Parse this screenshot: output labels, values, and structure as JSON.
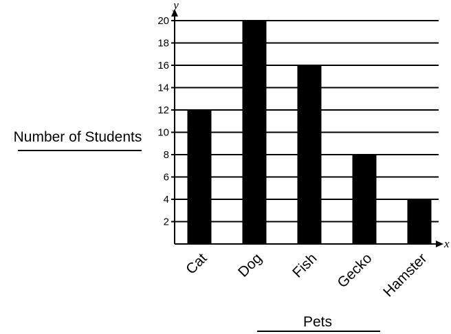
{
  "chart_data": {
    "type": "bar",
    "categories": [
      "Cat",
      "Dog",
      "Fish",
      "Gecko",
      "Hamster"
    ],
    "values": [
      12,
      20,
      16,
      8,
      4
    ],
    "title": "",
    "xlabel": "Pets",
    "ylabel": "Number of Students",
    "x_axis_letter": "x",
    "y_axis_letter": "y",
    "ylim": [
      0,
      20
    ],
    "yticks": [
      2,
      4,
      6,
      8,
      10,
      12,
      14,
      16,
      18,
      20
    ],
    "grid": true,
    "bar_color": "#000000",
    "grid_color": "#000000"
  }
}
